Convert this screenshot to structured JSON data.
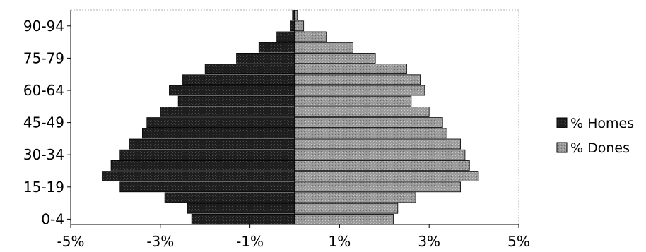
{
  "chart_data": {
    "type": "bar",
    "orientation": "horizontal",
    "layout": "population-pyramid",
    "categories": [
      "0-4",
      "5-9",
      "10-14",
      "15-19",
      "20-24",
      "25-29",
      "30-34",
      "35-39",
      "40-44",
      "45-49",
      "50-54",
      "55-59",
      "60-64",
      "65-69",
      "70-74",
      "75-79",
      "80-84",
      "85-89",
      "90-94",
      "95+"
    ],
    "y_tick_labels": [
      "0-4",
      "15-19",
      "30-34",
      "45-49",
      "60-64",
      "75-79",
      "90-94"
    ],
    "x_tick_labels": [
      "-5%",
      "-3%",
      "-1%",
      "1%",
      "3%",
      "5%"
    ],
    "xlim": [
      -5,
      5
    ],
    "grid": false,
    "legend_position": "right",
    "series": [
      {
        "name": "% Homes",
        "color": "#1e1e1e",
        "values": [
          -2.3,
          -2.4,
          -2.9,
          -3.9,
          -4.3,
          -4.1,
          -3.9,
          -3.7,
          -3.4,
          -3.3,
          -3.0,
          -2.6,
          -2.8,
          -2.5,
          -2.0,
          -1.3,
          -0.8,
          -0.4,
          -0.1,
          -0.05
        ]
      },
      {
        "name": "% Dones",
        "color": "#9a9a9a",
        "values": [
          2.2,
          2.3,
          2.7,
          3.7,
          4.1,
          3.9,
          3.8,
          3.7,
          3.4,
          3.3,
          3.0,
          2.6,
          2.9,
          2.8,
          2.5,
          1.8,
          1.3,
          0.7,
          0.2,
          0.06
        ]
      }
    ]
  }
}
